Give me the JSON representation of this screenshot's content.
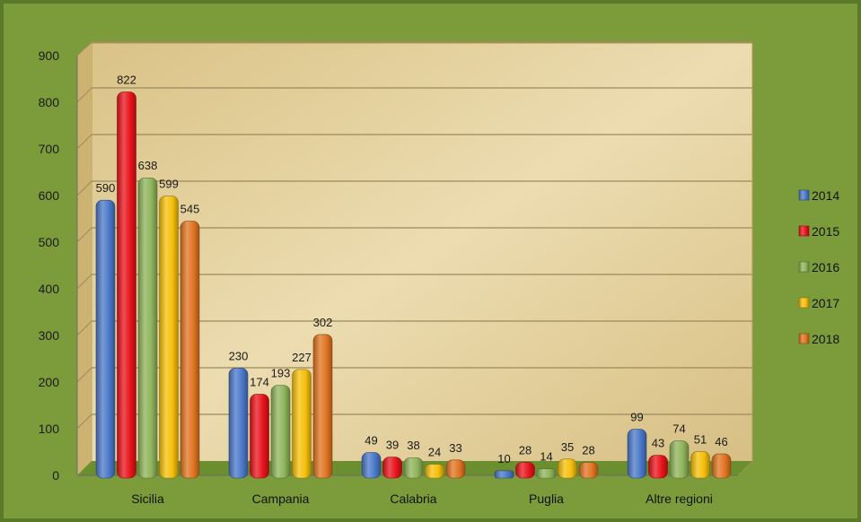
{
  "chart_data": {
    "type": "bar",
    "title": "",
    "xlabel": "",
    "ylabel": "",
    "categories": [
      "Sicilia",
      "Campania",
      "Calabria",
      "Puglia",
      "Altre regioni"
    ],
    "series": [
      {
        "name": "2014",
        "values": [
          590,
          230,
          49,
          10,
          99
        ],
        "color": "#4a78c8"
      },
      {
        "name": "2015",
        "values": [
          822,
          174,
          39,
          28,
          43
        ],
        "color": "#e8131b"
      },
      {
        "name": "2016",
        "values": [
          638,
          193,
          38,
          14,
          74
        ],
        "color": "#8fb45a"
      },
      {
        "name": "2017",
        "values": [
          599,
          227,
          24,
          35,
          51
        ],
        "color": "#f5bf0a"
      },
      {
        "name": "2018",
        "values": [
          545,
          302,
          33,
          28,
          46
        ],
        "color": "#e07421"
      }
    ],
    "ylim": [
      0,
      900
    ],
    "yticks": [
      0,
      100,
      200,
      300,
      400,
      500,
      600,
      700,
      800,
      900
    ],
    "grid": true,
    "legend_position": "right",
    "colors": {
      "frame": "#7c9b3a",
      "plot_background": "#e2cd97",
      "floor": "#6b8f2e"
    }
  }
}
